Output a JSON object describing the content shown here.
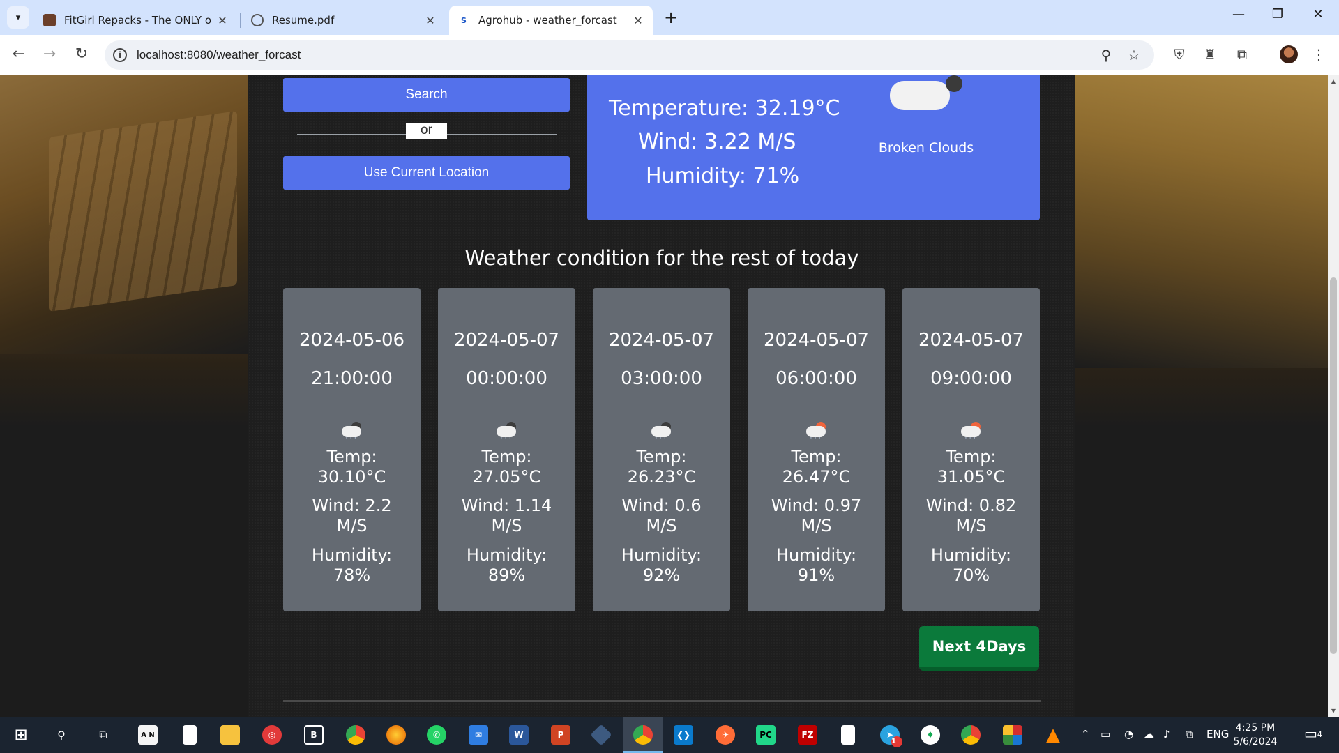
{
  "browser": {
    "tabs": [
      {
        "title": "FitGirl Repacks - The ONLY offic",
        "favicon": "fitgirl-icon"
      },
      {
        "title": "Resume.pdf",
        "favicon": "globe-icon"
      },
      {
        "title": "Agrohub - weather_forcast",
        "favicon": "s-icon",
        "favicon_text": "S",
        "active": true
      }
    ],
    "url": "localhost:8080/weather_forcast"
  },
  "search": {
    "search_label": "Search",
    "or_label": "or",
    "location_label": "Use Current Location"
  },
  "current": {
    "temperature": "Temperature: 32.19°C",
    "wind": "Wind: 3.22 M/S",
    "humidity": "Humidity: 71%",
    "description": "Broken Clouds",
    "icon": "broken-clouds-icon"
  },
  "section_title": "Weather condition for the rest of today",
  "forecast": [
    {
      "date": "2024-05-06",
      "time": "21:00:00",
      "icon": "rain-cloud-icon",
      "temp_label": "Temp:",
      "temp": "30.10°C",
      "wind_label": "Wind: 2.2",
      "wind_unit": "M/S",
      "humidity_label": "Humidity:",
      "humidity": "78%"
    },
    {
      "date": "2024-05-07",
      "time": "00:00:00",
      "icon": "rain-cloud-icon",
      "temp_label": "Temp:",
      "temp": "27.05°C",
      "wind_label": "Wind: 1.14",
      "wind_unit": "M/S",
      "humidity_label": "Humidity:",
      "humidity": "89%"
    },
    {
      "date": "2024-05-07",
      "time": "03:00:00",
      "icon": "rain-cloud-icon",
      "temp_label": "Temp:",
      "temp": "26.23°C",
      "wind_label": "Wind: 0.6",
      "wind_unit": "M/S",
      "humidity_label": "Humidity:",
      "humidity": "92%"
    },
    {
      "date": "2024-05-07",
      "time": "06:00:00",
      "icon": "sun-rain-icon",
      "temp_label": "Temp:",
      "temp": "26.47°C",
      "wind_label": "Wind: 0.97",
      "wind_unit": "M/S",
      "humidity_label": "Humidity:",
      "humidity": "91%"
    },
    {
      "date": "2024-05-07",
      "time": "09:00:00",
      "icon": "sun-rain-icon",
      "temp_label": "Temp:",
      "temp": "31.05°C",
      "wind_label": "Wind: 0.82",
      "wind_unit": "M/S",
      "humidity_label": "Humidity:",
      "humidity": "70%"
    }
  ],
  "next_button": "Next 4Days",
  "taskbar": {
    "language": "ENG",
    "time": "4:25 PM",
    "date": "5/6/2024",
    "notifications": "4",
    "telegram_badge": "1"
  },
  "colors": {
    "accent_blue": "#5471eb",
    "card_gray": "#646a72",
    "next_green": "#0b7a3b"
  }
}
